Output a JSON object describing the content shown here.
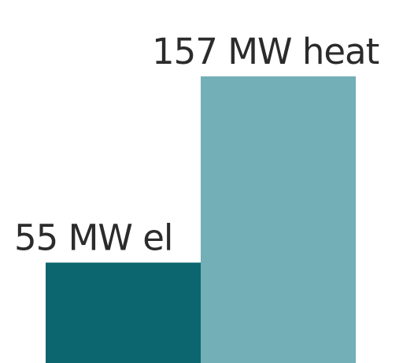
{
  "chart_data": {
    "type": "bar",
    "categories": [
      "el",
      "heat"
    ],
    "values": [
      55,
      157
    ],
    "data_labels": [
      "55 MW el",
      "157 MW heat"
    ],
    "colors": [
      "#0b6670",
      "#73afb7"
    ],
    "ylim": [
      0,
      157
    ],
    "grid": false,
    "legend": "none"
  }
}
